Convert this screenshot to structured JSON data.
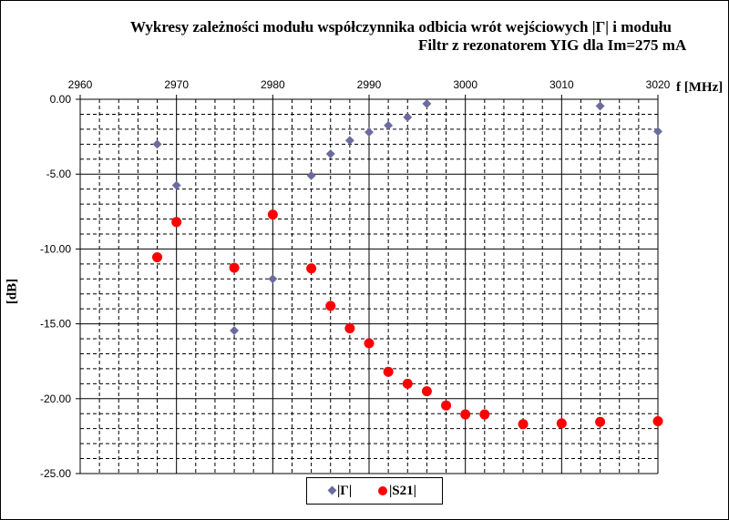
{
  "chart_data": {
    "type": "scatter",
    "title": "Wykresy zależności modułu współczynnika odbicia wrót wejściowych |Γ| i modułu",
    "subtitle": "Filtr z rezonatorem YIG dla Im=275 mA",
    "xlabel": "f [MHz]",
    "ylabel": "[dB]",
    "xlim": [
      2960,
      3020
    ],
    "ylim": [
      -25,
      0
    ],
    "x_ticks": [
      "2960",
      "2970",
      "2980",
      "2990",
      "3000",
      "3010",
      "3020"
    ],
    "y_ticks": [
      "0.00",
      "-5.00",
      "-10.00",
      "-15.00",
      "-20.00",
      "-25.00"
    ],
    "x_axis_position": "top",
    "grid": true,
    "legend": "bottom",
    "series": [
      {
        "name": "|Γ|",
        "color": "#6b6b9e",
        "marker": "diamond",
        "x": [
          2968,
          2970,
          2976,
          2980,
          2984,
          2986,
          2988,
          2990,
          2992,
          2994,
          2996,
          3014,
          3020
        ],
        "y": [
          -3.0,
          -5.75,
          -15.45,
          -12.0,
          -5.1,
          -3.65,
          -2.75,
          -2.2,
          -1.75,
          -1.2,
          -0.3,
          -0.45,
          -2.15
        ]
      },
      {
        "name": "|S21|",
        "color": "#ff0000",
        "marker": "circle",
        "x": [
          2968,
          2970,
          2976,
          2980,
          2984,
          2986,
          2988,
          2990,
          2992,
          2994,
          2996,
          2998,
          3000,
          3002,
          3006,
          3010,
          3014,
          3020
        ],
        "y": [
          -10.55,
          -8.2,
          -11.25,
          -7.7,
          -11.3,
          -13.8,
          -15.3,
          -16.3,
          -18.2,
          -19.0,
          -19.5,
          -20.45,
          -21.05,
          -21.05,
          -21.7,
          -21.65,
          -21.55,
          -21.5
        ]
      }
    ]
  }
}
